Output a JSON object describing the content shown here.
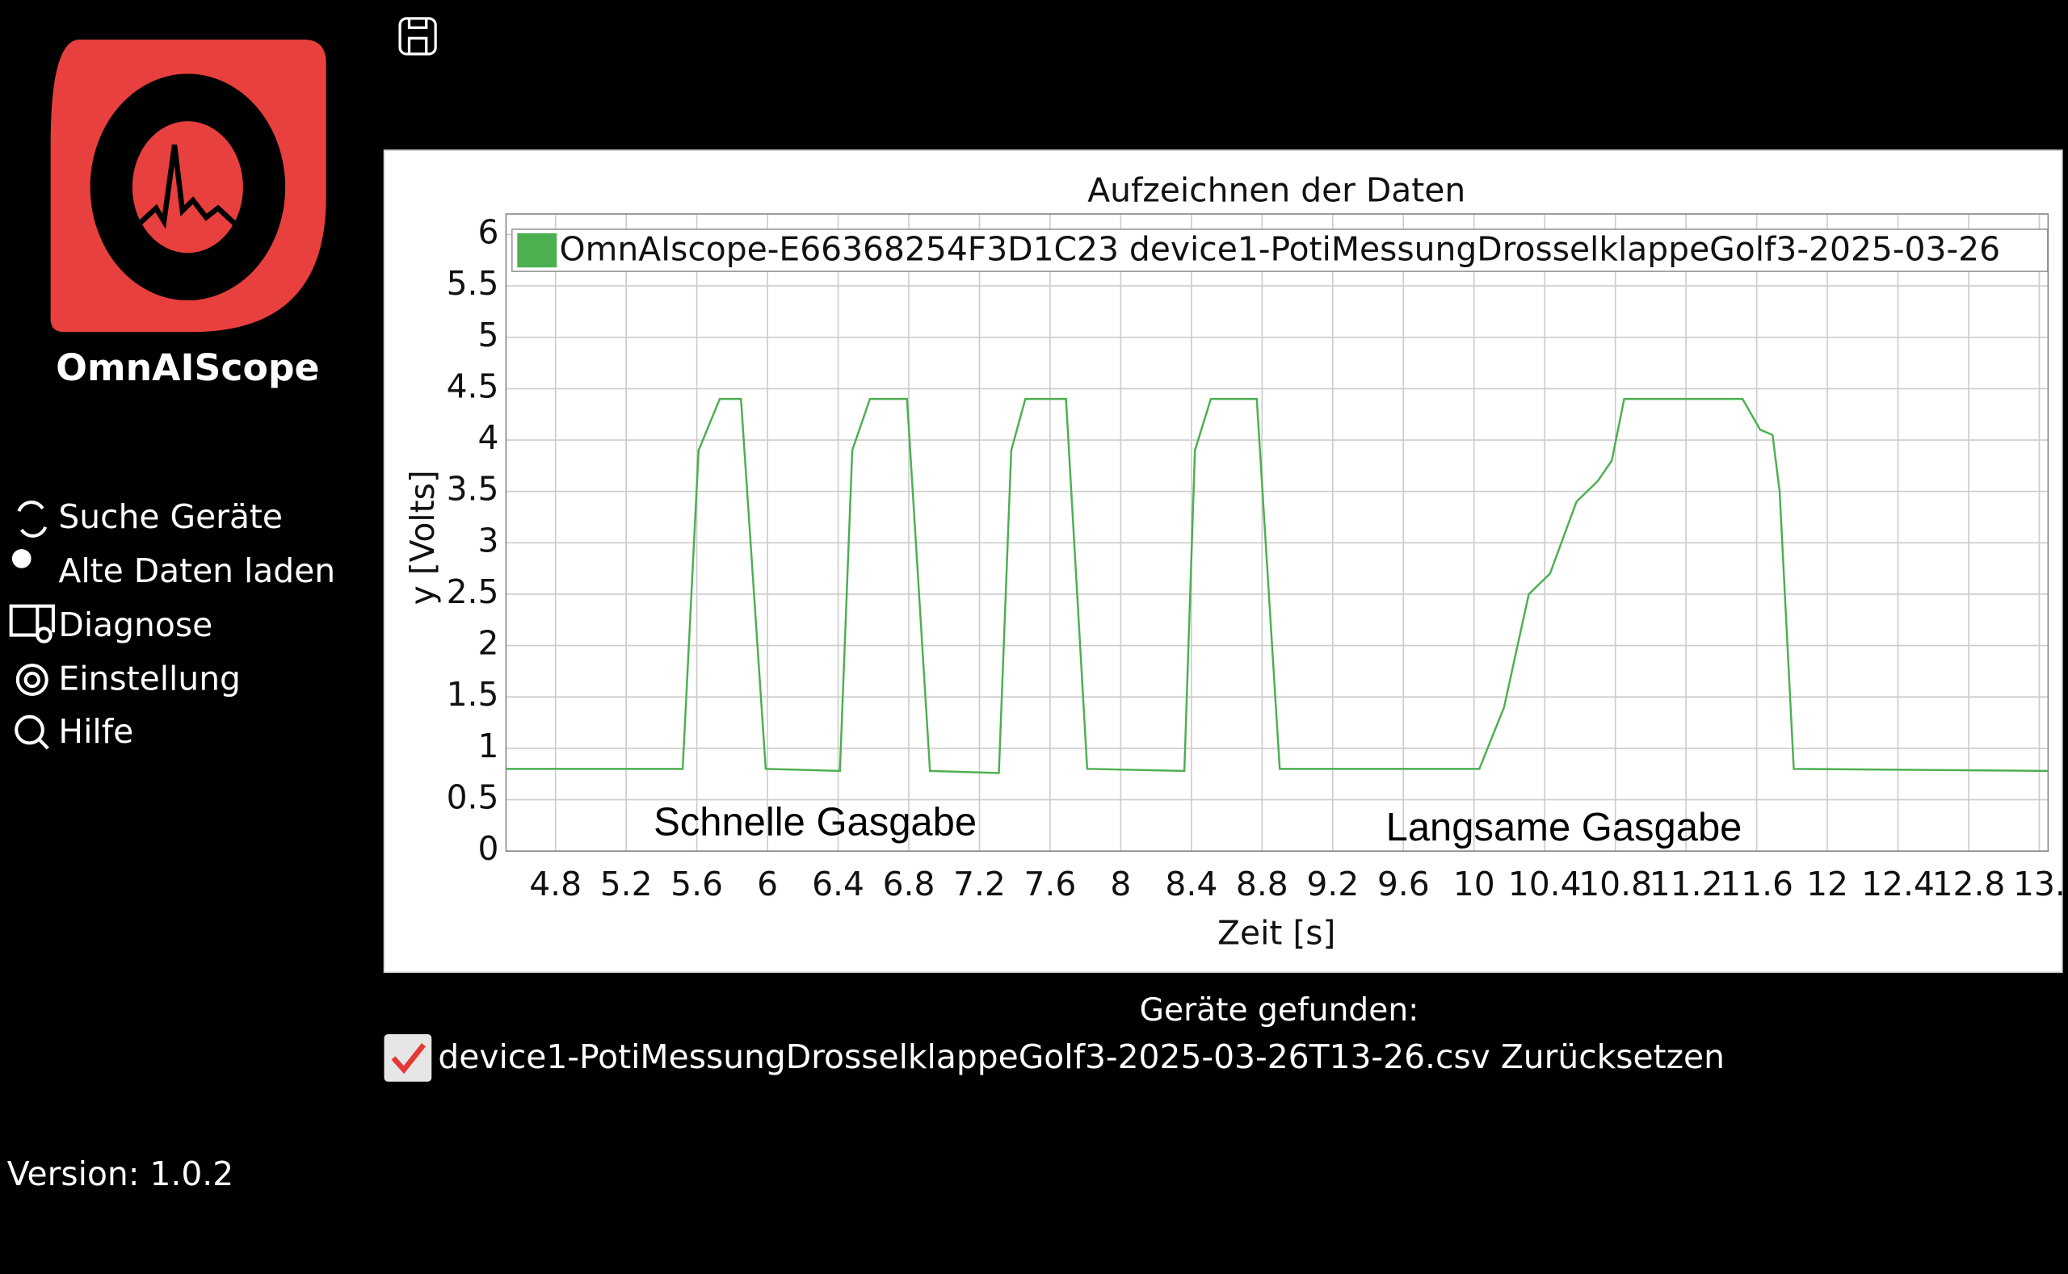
{
  "app": {
    "name": "OmnAIScope",
    "menu": [
      "Suche Geräte",
      "Alte Daten laden",
      "Diagnose",
      "Einstellung",
      "Hilfe"
    ],
    "version": "Version: 1.0.2"
  },
  "chart_data": {
    "type": "line",
    "title": "Aufzeichnen der Daten",
    "xlabel": "Zeit [s]",
    "ylabel": "y [Volts]",
    "x": [
      4.52,
      5.52,
      5.61,
      5.73,
      5.85,
      5.99,
      6.41,
      6.48,
      6.58,
      6.79,
      6.92,
      7.31,
      7.38,
      7.46,
      7.69,
      7.81,
      8.36,
      8.42,
      8.51,
      8.77,
      8.9,
      10.03,
      10.17,
      10.31,
      10.43,
      10.58,
      10.7,
      10.78,
      10.85,
      11.52,
      11.62,
      11.69,
      11.73,
      11.81,
      13.25
    ],
    "series": [
      {
        "name": "OmnAIscope-E66368254F3D1C23 device1-PotiMessungDrosselklappeGolf3-2025-03-26",
        "color": "#4caf50",
        "values": [
          0.8,
          0.8,
          3.9,
          4.4,
          4.4,
          0.8,
          0.78,
          3.9,
          4.4,
          4.4,
          0.78,
          0.76,
          3.9,
          4.4,
          4.4,
          0.8,
          0.78,
          3.9,
          4.4,
          4.4,
          0.8,
          0.8,
          1.4,
          2.5,
          2.7,
          3.4,
          3.6,
          3.8,
          4.4,
          4.4,
          4.1,
          4.05,
          3.5,
          0.8,
          0.78
        ]
      }
    ],
    "xlim": [
      4.52,
      13.25
    ],
    "ylim": [
      0,
      6.2
    ],
    "xticks": [
      4.8,
      5.2,
      5.6,
      6,
      6.4,
      6.8,
      7.2,
      7.6,
      8,
      8.4,
      8.8,
      9.2,
      9.6,
      10,
      10.4,
      10.8,
      11.2,
      11.6,
      12,
      12.4,
      12.8,
      {
        "value": 13.2,
        "label": "13."
      }
    ],
    "yticks": [
      0,
      0.5,
      1,
      1.5,
      2,
      2.5,
      3,
      3.5,
      4,
      4.5,
      5,
      5.5,
      6
    ],
    "grid": true,
    "annotations": [
      "Schnelle Gasgabe",
      "Langsame Gasgabe"
    ]
  },
  "devices": {
    "heading": "Geräte gefunden:",
    "items": [
      {
        "file": "device1-PotiMessungDrosselklappeGolf3-2025-03-26T13-26.csv",
        "checked": true,
        "action": "Zurücksetzen"
      }
    ]
  }
}
